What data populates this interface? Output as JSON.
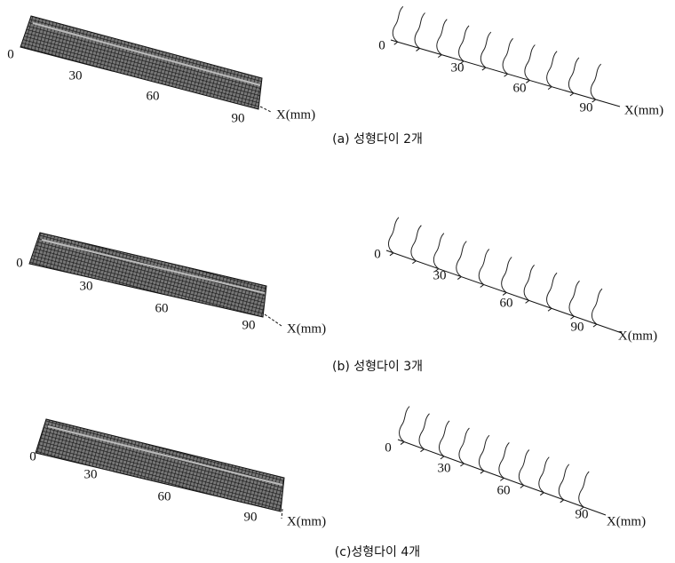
{
  "panels": [
    {
      "caption": "(a) 성형다이 2개",
      "left": {
        "ticks": [
          "0",
          "30",
          "60",
          "90"
        ],
        "axis_label": "X(mm)"
      },
      "right": {
        "ticks": [
          "0",
          "30",
          "60",
          "90"
        ],
        "axis_label": "X(mm)"
      }
    },
    {
      "caption": "(b) 성형다이 3개",
      "left": {
        "ticks": [
          "0",
          "30",
          "60",
          "90"
        ],
        "axis_label": "X(mm)"
      },
      "right": {
        "ticks": [
          "0",
          "30",
          "60",
          "90"
        ],
        "axis_label": "X(mm)"
      }
    },
    {
      "caption": "(c)성형다이 4개",
      "left": {
        "ticks": [
          "0",
          "30",
          "60",
          "90"
        ],
        "axis_label": "X(mm)"
      },
      "right": {
        "ticks": [
          "0",
          "30",
          "60",
          "90"
        ],
        "axis_label": "X(mm)"
      }
    }
  ]
}
